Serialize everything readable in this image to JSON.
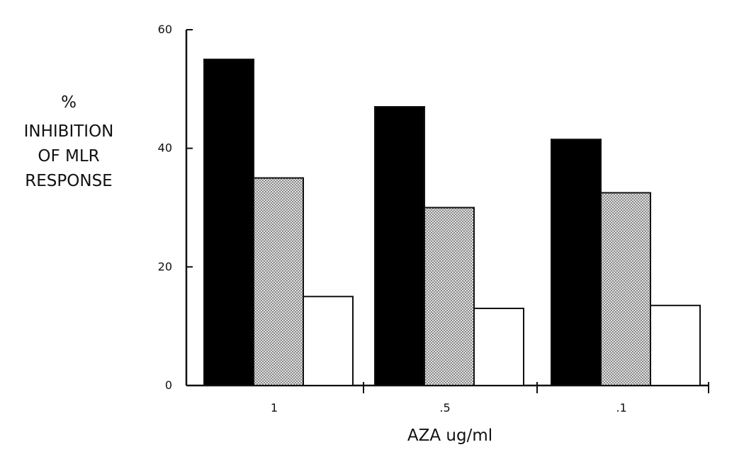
{
  "chart_data": {
    "type": "bar",
    "categories": [
      "1",
      ".5",
      ".1"
    ],
    "series": [
      {
        "values": [
          55,
          47,
          41.5
        ],
        "fill": "solid-black"
      },
      {
        "values": [
          35,
          30,
          32.5
        ],
        "fill": "dotted-gray"
      },
      {
        "values": [
          15,
          13,
          13.5
        ],
        "fill": "white"
      }
    ],
    "xlabel": "AZA ug/ml",
    "ylabel_lines": [
      "%",
      "INHIBITION",
      "OF MLR",
      "RESPONSE"
    ],
    "ylim": [
      0,
      60
    ],
    "yticks": [
      0,
      20,
      40,
      60
    ],
    "grid": false,
    "legend": "none"
  },
  "colors": {
    "ink": "#111111",
    "black_bar": "#000000",
    "dotted_bg": "#e2e2e2",
    "dot": "#4a4a4a",
    "white_bar": "#ffffff"
  }
}
